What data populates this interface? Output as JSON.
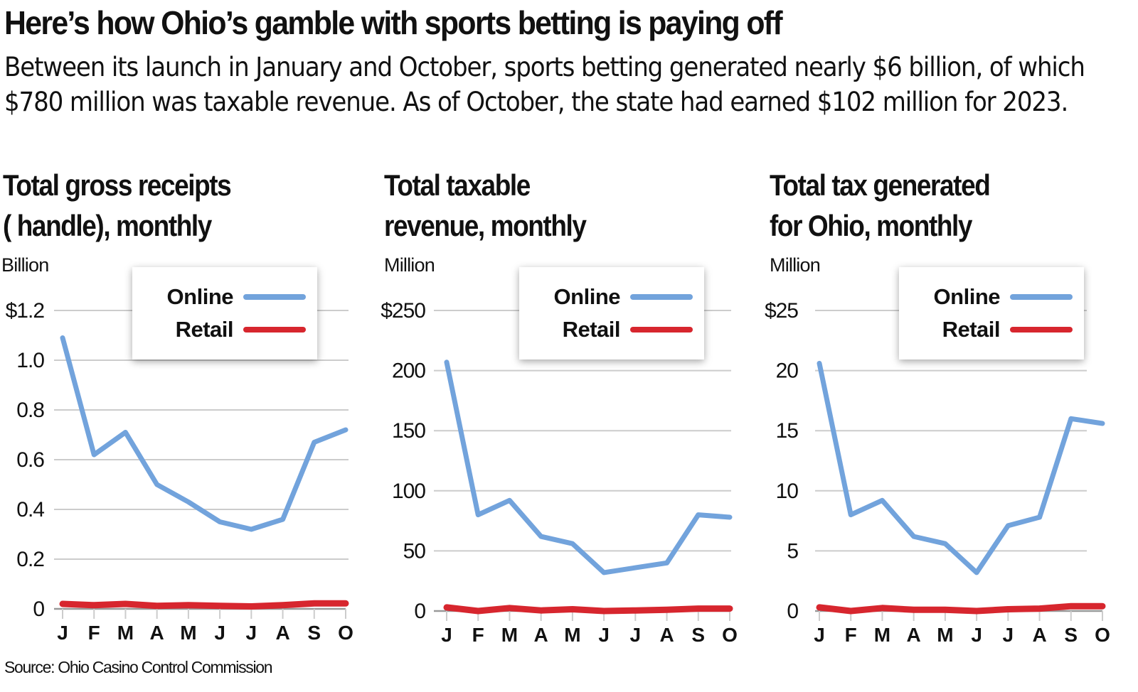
{
  "headline": "Here’s how Ohio’s gamble with sports betting is paying off",
  "dek": "Between its launch in January and October, sports betting generated nearly $6 billion, of which $780 million was taxable revenue. As of October, the state had earned $102 million for 2023.",
  "source": "Source: Ohio Casino Control Commission",
  "colors": {
    "online": "#72a3dc",
    "retail": "#d7262e",
    "grid": "#cccccc"
  },
  "legend": {
    "online": "Online",
    "retail": "Retail"
  },
  "chart_data": [
    {
      "type": "line",
      "title": "Total gross receipts (handle), monthly",
      "title_lines": [
        "Total gross receipts",
        "( handle), monthly"
      ],
      "ylabel": "Billion",
      "xlabel": "",
      "categories": [
        "J",
        "F",
        "M",
        "A",
        "M",
        "J",
        "J",
        "A",
        "S",
        "O"
      ],
      "yticks": [
        0,
        0.2,
        0.4,
        0.6,
        0.8,
        1.0,
        1.2
      ],
      "ytick_labels": [
        "0",
        "0.2",
        "0.4",
        "0.6",
        "0.8",
        "1.0",
        "$1.2"
      ],
      "ylim": [
        0,
        1.2
      ],
      "grid": true,
      "legend_position": "top-center",
      "series": [
        {
          "name": "Online",
          "values": [
            1.09,
            0.62,
            0.71,
            0.5,
            0.43,
            0.35,
            0.32,
            0.36,
            0.67,
            0.72
          ]
        },
        {
          "name": "Retail",
          "values": [
            0.02,
            0.015,
            0.02,
            0.012,
            0.015,
            0.012,
            0.01,
            0.015,
            0.022,
            0.022
          ]
        }
      ]
    },
    {
      "type": "line",
      "title": "Total taxable revenue, monthly",
      "title_lines": [
        "Total taxable",
        "revenue, monthly"
      ],
      "ylabel": "Million",
      "xlabel": "",
      "categories": [
        "J",
        "F",
        "M",
        "A",
        "M",
        "J",
        "J",
        "A",
        "S",
        "O"
      ],
      "yticks": [
        0,
        50,
        100,
        150,
        200,
        250
      ],
      "ytick_labels": [
        "0",
        "50",
        "100",
        "150",
        "200",
        "$250"
      ],
      "ylim": [
        0,
        250
      ],
      "grid": true,
      "legend_position": "top-center",
      "series": [
        {
          "name": "Online",
          "values": [
            207,
            80,
            92,
            62,
            56,
            32,
            36,
            40,
            80,
            78
          ]
        },
        {
          "name": "Retail",
          "values": [
            3,
            0,
            2.5,
            0.5,
            1.5,
            0,
            0.5,
            1,
            2,
            2
          ]
        }
      ]
    },
    {
      "type": "line",
      "title": "Total tax generated for Ohio, monthly",
      "title_lines": [
        "Total tax generated",
        "for Ohio, monthly"
      ],
      "ylabel": "Million",
      "xlabel": "",
      "categories": [
        "J",
        "F",
        "M",
        "A",
        "M",
        "J",
        "J",
        "A",
        "S",
        "O"
      ],
      "yticks": [
        0,
        5,
        10,
        15,
        20,
        25
      ],
      "ytick_labels": [
        "0",
        "5",
        "10",
        "15",
        "20",
        "$25"
      ],
      "ylim": [
        0,
        25
      ],
      "grid": true,
      "legend_position": "top-center",
      "series": [
        {
          "name": "Online",
          "values": [
            20.6,
            8.0,
            9.2,
            6.2,
            5.6,
            3.2,
            7.1,
            7.8,
            16.0,
            15.6
          ]
        },
        {
          "name": "Retail",
          "values": [
            0.3,
            0,
            0.25,
            0.1,
            0.1,
            0,
            0.15,
            0.2,
            0.4,
            0.4
          ]
        }
      ]
    }
  ]
}
